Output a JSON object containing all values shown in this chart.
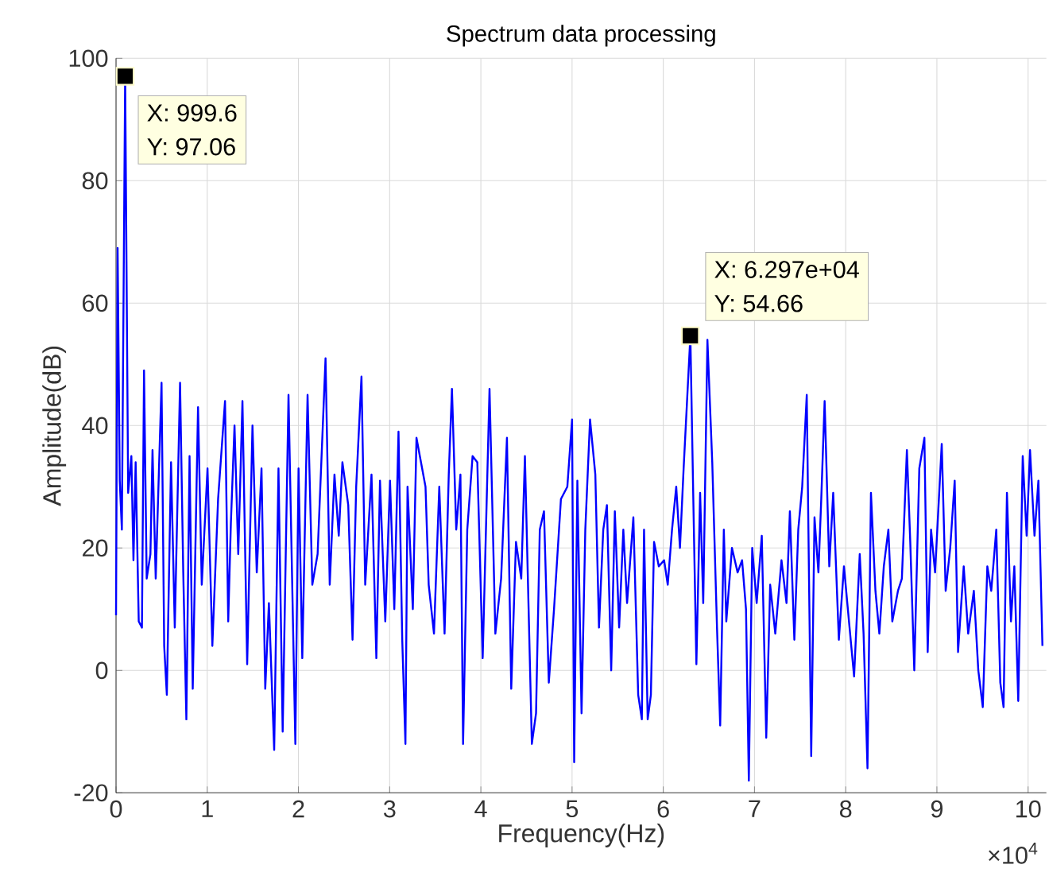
{
  "chart_data": {
    "type": "line",
    "title": "Spectrum data processing",
    "xlabel": "Frequency(Hz)",
    "ylabel": "Amplitude(dB)",
    "grid": true,
    "xlim": [
      0,
      10.2
    ],
    "ylim": [
      -20,
      100
    ],
    "xticks": [
      0,
      1,
      2,
      3,
      4,
      5,
      6,
      7,
      8,
      9,
      10
    ],
    "yticks": [
      -20,
      0,
      20,
      40,
      60,
      80,
      100
    ],
    "series": [
      {
        "color": "#0000ff",
        "x": [
          0,
          0.0174,
          0.0406,
          0.064,
          0.09996,
          0.133,
          0.168,
          0.191,
          0.215,
          0.249,
          0.284,
          0.307,
          0.336,
          0.377,
          0.4,
          0.435,
          0.499,
          0.528,
          0.557,
          0.603,
          0.644,
          0.702,
          0.737,
          0.771,
          0.806,
          0.841,
          0.899,
          0.94,
          1.003,
          1.056,
          1.119,
          1.195,
          1.23,
          1.259,
          1.299,
          1.34,
          1.386,
          1.438,
          1.496,
          1.543,
          1.595,
          1.636,
          1.676,
          1.734,
          1.781,
          1.827,
          1.891,
          1.966,
          2.001,
          2.042,
          2.1,
          2.152,
          2.21,
          2.297,
          2.343,
          2.395,
          2.442,
          2.482,
          2.546,
          2.593,
          2.633,
          2.691,
          2.732,
          2.801,
          2.854,
          2.894,
          2.952,
          3.004,
          3.051,
          3.097,
          3.138,
          3.173,
          3.196,
          3.254,
          3.294,
          3.393,
          3.428,
          3.486,
          3.544,
          3.602,
          3.648,
          3.683,
          3.73,
          3.776,
          3.805,
          3.851,
          3.909,
          3.961,
          4.02,
          4.095,
          4.159,
          4.222,
          4.286,
          4.333,
          4.385,
          4.443,
          4.483,
          4.559,
          4.605,
          4.646,
          4.692,
          4.745,
          4.802,
          4.878,
          4.948,
          5,
          5.023,
          5.058,
          5.104,
          5.145,
          5.197,
          5.255,
          5.295,
          5.342,
          5.382,
          5.429,
          5.469,
          5.516,
          5.562,
          5.603,
          5.672,
          5.725,
          5.765,
          5.789,
          5.829,
          5.864,
          5.899,
          5.951,
          6.009,
          6.049,
          6.096,
          6.142,
          6.183,
          6.223,
          6.297,
          6.328,
          6.363,
          6.404,
          6.438,
          6.484,
          6.537,
          6.589,
          6.624,
          6.664,
          6.691,
          6.753,
          6.815,
          6.864,
          6.907,
          6.938,
          6.975,
          7.024,
          7.08,
          7.129,
          7.172,
          7.228,
          7.296,
          7.351,
          7.388,
          7.437,
          7.48,
          7.523,
          7.573,
          7.622,
          7.658,
          7.701,
          7.732,
          7.769,
          7.82,
          7.863,
          7.925,
          7.981,
          8.036,
          8.092,
          8.154,
          8.196,
          8.239,
          8.277,
          8.326,
          8.369,
          8.418,
          8.468,
          8.511,
          8.573,
          8.616,
          8.671,
          8.708,
          8.752,
          8.807,
          8.863,
          8.899,
          8.936,
          8.98,
          9.053,
          9.096,
          9.146,
          9.195,
          9.232,
          9.294,
          9.343,
          9.405,
          9.454,
          9.503,
          9.553,
          9.596,
          9.651,
          9.695,
          9.731,
          9.768,
          9.812,
          9.849,
          9.892,
          9.941,
          9.984,
          10.021,
          10.07,
          10.113,
          10.157
        ],
        "values": [
          9,
          69,
          31,
          23,
          97.06,
          29,
          35,
          18,
          34,
          8,
          7,
          49,
          15,
          19,
          36,
          15,
          47,
          4,
          -4,
          34,
          7,
          47,
          16,
          -8,
          35,
          -3,
          43,
          14,
          33,
          4,
          28,
          44,
          8,
          24,
          40,
          19,
          44,
          1,
          40,
          16,
          33,
          -3,
          11,
          -13,
          33,
          -10,
          45,
          -12,
          33,
          2,
          45,
          14,
          19,
          51,
          14,
          32,
          22,
          34,
          27,
          5,
          30,
          48,
          14,
          32,
          2,
          31,
          8,
          31,
          10,
          39,
          5,
          -12,
          30,
          10,
          38,
          30,
          14,
          6,
          30,
          6,
          32,
          46,
          23,
          32,
          -12,
          23,
          35,
          34,
          2,
          46,
          6,
          15,
          38,
          -3,
          21,
          15,
          35,
          -12,
          -7,
          23,
          26,
          -2,
          10,
          28,
          30,
          41,
          -15,
          31,
          -7,
          23,
          41,
          32,
          7,
          23,
          27,
          0,
          26,
          7,
          23,
          11,
          25,
          -4,
          -8,
          23,
          -8,
          -4,
          21,
          17,
          18,
          14,
          23,
          30,
          20,
          33,
          54.66,
          29,
          1,
          29,
          11,
          54,
          34,
          7,
          -9,
          23,
          8,
          20,
          16,
          18,
          10,
          -18,
          20,
          11,
          22,
          -11,
          14,
          6,
          18,
          11,
          26,
          5,
          23,
          30,
          45,
          -14,
          25,
          16,
          28,
          44,
          17,
          29,
          5,
          17,
          8,
          -1,
          19,
          6,
          -16,
          29,
          13,
          6,
          17,
          23,
          8,
          13,
          15,
          36,
          21,
          0,
          33,
          38,
          3,
          23,
          16,
          37,
          13,
          20,
          31,
          3,
          17,
          6,
          13,
          0,
          -6,
          17,
          13,
          23,
          -2,
          -6,
          29,
          8,
          17,
          -5,
          35,
          22,
          36,
          22,
          31,
          4
        ]
      },
      {
        "type": "scatter",
        "color": "#000000",
        "marker": "square",
        "x": [
          0.09996,
          6.297
        ],
        "values": [
          97.06,
          54.66
        ]
      }
    ],
    "annotations": [
      "X: 999.6",
      "Y: 97.06",
      "X: 6.297e+04",
      "Y: 54.66",
      "×10$^{4}$"
    ]
  }
}
